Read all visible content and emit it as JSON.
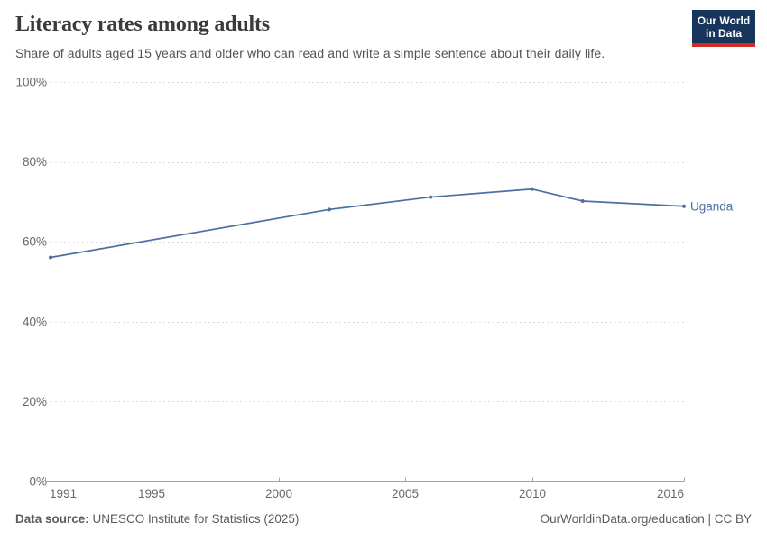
{
  "header": {
    "title": "Literacy rates among adults",
    "subtitle": "Share of adults aged 15 years and older who can read and write a simple sentence about their daily life.",
    "logo": {
      "line1": "Our World",
      "line2": "in Data",
      "bg": "#18365c",
      "accent": "#cf2d24"
    }
  },
  "chart_data": {
    "type": "line",
    "title": "Literacy rates among adults",
    "entity_label": "Uganda",
    "series": [
      {
        "name": "Uganda",
        "color": "#4c6fa3",
        "points": [
          {
            "year": 1991,
            "value": 56.1
          },
          {
            "year": 2002,
            "value": 68.1
          },
          {
            "year": 2006,
            "value": 71.2
          },
          {
            "year": 2010,
            "value": 73.2
          },
          {
            "year": 2012,
            "value": 70.2
          },
          {
            "year": 2016,
            "value": 68.9
          }
        ]
      }
    ],
    "x_ticks": [
      1991,
      1995,
      2000,
      2005,
      2010,
      2016
    ],
    "y_ticks": [
      0,
      20,
      40,
      60,
      80,
      100
    ],
    "y_tick_suffix": "%",
    "xlim": [
      1991,
      2016
    ],
    "ylim": [
      0,
      100
    ],
    "grid": "horizontal-dashed",
    "legend_position": "end-of-line",
    "colors": {
      "gridline": "#dcdcdc",
      "axis": "#a3a3a3",
      "tick_label": "#686868"
    }
  },
  "footer": {
    "source_label": "Data source:",
    "source_text": " UNESCO Institute for Statistics (2025)",
    "credit": "OurWorldinData.org/education | CC BY"
  }
}
